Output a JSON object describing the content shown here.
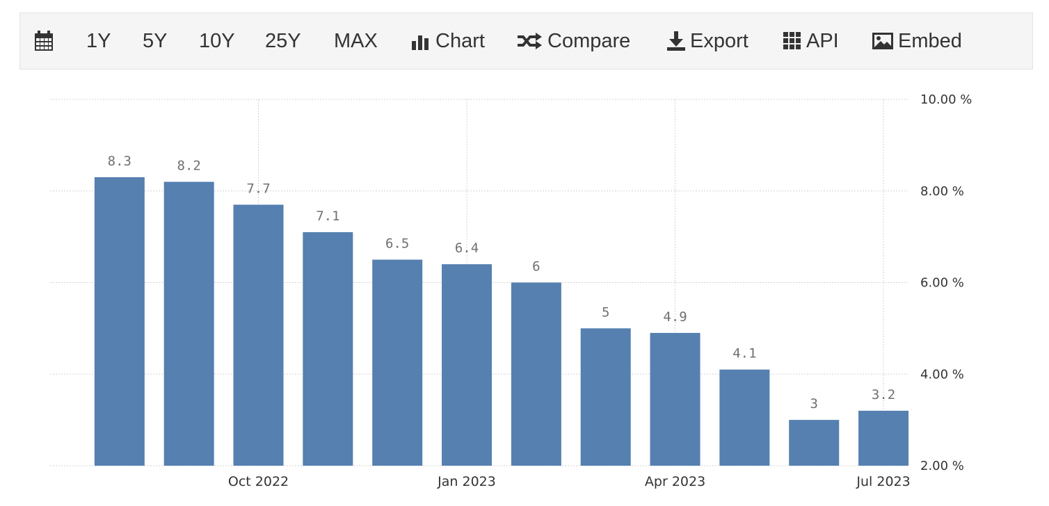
{
  "toolbar": {
    "items": [
      {
        "id": "1y",
        "label": "1Y"
      },
      {
        "id": "5y",
        "label": "5Y"
      },
      {
        "id": "10y",
        "label": "10Y"
      },
      {
        "id": "25y",
        "label": "25Y"
      },
      {
        "id": "max",
        "label": "MAX"
      },
      {
        "id": "chart",
        "label": "Chart",
        "icon": "bar-chart-icon"
      },
      {
        "id": "compare",
        "label": "Compare",
        "icon": "shuffle-icon"
      },
      {
        "id": "export",
        "label": "Export",
        "icon": "download-icon"
      },
      {
        "id": "api",
        "label": "API",
        "icon": "grid-icon"
      },
      {
        "id": "embed",
        "label": "Embed",
        "icon": "image-icon"
      }
    ],
    "calendar_icon": "calendar-icon"
  },
  "colors": {
    "bar": "#5580b0",
    "grid": "#d2d2d2",
    "toolbar_bg": "#f5f5f5"
  },
  "chart_data": {
    "type": "bar",
    "categories": [
      "2022-08",
      "2022-09",
      "2022-10",
      "2022-11",
      "2022-12",
      "2023-01",
      "2023-02",
      "2023-03",
      "2023-04",
      "2023-05",
      "2023-06",
      "2023-07"
    ],
    "values": [
      8.3,
      8.2,
      7.7,
      7.1,
      6.5,
      6.4,
      6,
      5,
      4.9,
      4.1,
      3,
      3.2
    ],
    "data_labels": [
      "8.3",
      "8.2",
      "7.7",
      "7.1",
      "6.5",
      "6.4",
      "6",
      "5",
      "4.9",
      "4.1",
      "3",
      "3.2"
    ],
    "x_tick_labels": [
      {
        "category": "2022-10",
        "label": "Oct 2022"
      },
      {
        "category": "2023-01",
        "label": "Jan 2023"
      },
      {
        "category": "2023-04",
        "label": "Apr 2023"
      },
      {
        "category": "2023-07",
        "label": "Jul 2023"
      }
    ],
    "y_ticks": [
      {
        "value": 2,
        "label": "2.00 %"
      },
      {
        "value": 4,
        "label": "4.00 %"
      },
      {
        "value": 6,
        "label": "6.00 %"
      },
      {
        "value": 8,
        "label": "8.00 %"
      },
      {
        "value": 10,
        "label": "10.00 %"
      }
    ],
    "ylim": [
      2,
      10
    ],
    "y_axis_side": "right",
    "grid": true,
    "title": "",
    "xlabel": "",
    "ylabel": ""
  }
}
